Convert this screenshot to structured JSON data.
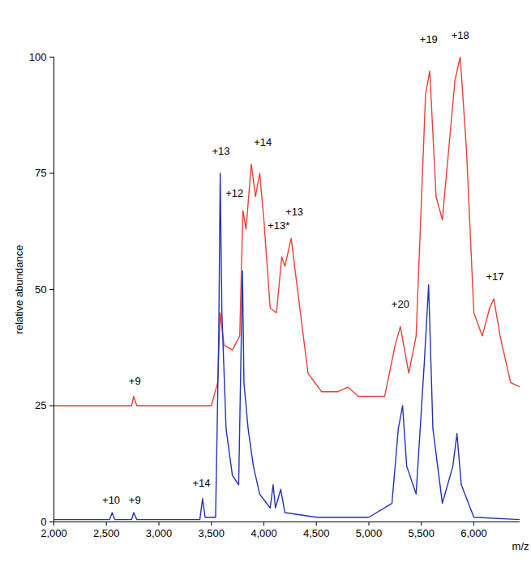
{
  "chart_data": {
    "type": "line",
    "x_label": "m/z",
    "y_label": "relative abundance",
    "xlim": [
      2000,
      6440
    ],
    "xticks": [
      2000,
      2500,
      3000,
      3500,
      4000,
      4500,
      5000,
      5500,
      6000
    ],
    "ylim": [
      0,
      100
    ],
    "yticks": [
      0,
      25,
      50,
      75,
      100
    ],
    "grid": false,
    "series": [
      {
        "color": "#e8413a",
        "x": [
          2000,
          2740,
          2760,
          2790,
          3500,
          3560,
          3584,
          3620,
          3700,
          3770,
          3800,
          3830,
          3880,
          3920,
          3960,
          4000,
          4060,
          4120,
          4170,
          4200,
          4260,
          4320,
          4420,
          4550,
          4700,
          4800,
          4900,
          5150,
          5250,
          5300,
          5380,
          5450,
          5540,
          5580,
          5640,
          5700,
          5820,
          5870,
          5930,
          6000,
          6080,
          6150,
          6190,
          6250,
          6350,
          6440
        ],
        "values": [
          25,
          25,
          27,
          25,
          25,
          30,
          45,
          38,
          37,
          40,
          67,
          63,
          77,
          70,
          75,
          65,
          46,
          45,
          57,
          55,
          61,
          50,
          32,
          28,
          28,
          29,
          27,
          27,
          38,
          42,
          32,
          40,
          92,
          97,
          70,
          65,
          95,
          100,
          80,
          45,
          40,
          46,
          48,
          40,
          30,
          29
        ]
      },
      {
        "color": "#2433b5",
        "x": [
          2000,
          2530,
          2555,
          2580,
          2740,
          2760,
          2790,
          3390,
          3416,
          3440,
          3540,
          3570,
          3584,
          3600,
          3640,
          3700,
          3760,
          3785,
          3796,
          3810,
          3850,
          3900,
          3960,
          4060,
          4088,
          4110,
          4160,
          4200,
          4500,
          5000,
          5220,
          5280,
          5321,
          5360,
          5450,
          5530,
          5569,
          5610,
          5700,
          5800,
          5839,
          5880,
          6000,
          6440
        ],
        "values": [
          0.5,
          0.5,
          2,
          0.5,
          0.5,
          2,
          0.5,
          0.5,
          5,
          1,
          1,
          40,
          75,
          45,
          20,
          10,
          8,
          40,
          54,
          30,
          20,
          12,
          6,
          3,
          8,
          3,
          7,
          2,
          1,
          1,
          4,
          20,
          25,
          12,
          6,
          35,
          51,
          20,
          4,
          12,
          19,
          8,
          1,
          0.5
        ]
      }
    ],
    "annotations": [
      {
        "text": "+9",
        "x": 2770,
        "y": 29.5
      },
      {
        "text": "+12",
        "x": 3720,
        "y": 70
      },
      {
        "text": "+14",
        "x": 3990,
        "y": 81
      },
      {
        "text": "+13*",
        "x": 4140,
        "y": 63
      },
      {
        "text": "+13",
        "x": 4290,
        "y": 66
      },
      {
        "text": "+20",
        "x": 5300,
        "y": 46
      },
      {
        "text": "+19",
        "x": 5570,
        "y": 103
      },
      {
        "text": "+18",
        "x": 5870,
        "y": 104
      },
      {
        "text": "+17",
        "x": 6200,
        "y": 52
      },
      {
        "text": "+10",
        "x": 2545,
        "y": 4
      },
      {
        "text": "+9",
        "x": 2770,
        "y": 4
      },
      {
        "text": "+14",
        "x": 3405,
        "y": 7.5
      },
      {
        "text": "+13",
        "x": 3590,
        "y": 79
      }
    ]
  }
}
